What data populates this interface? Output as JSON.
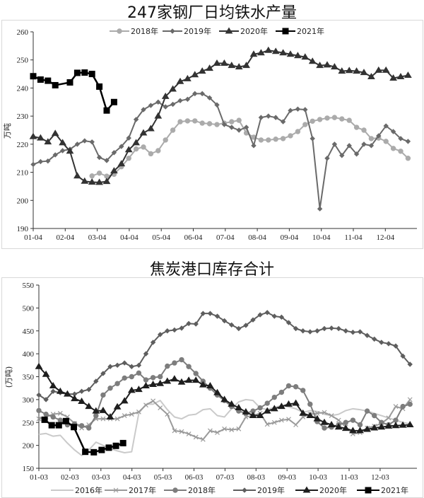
{
  "chart_data": [
    {
      "type": "line",
      "title": "247家钢厂日均铁水产量",
      "ylabel": "万吨",
      "xlabel": "",
      "ylim": [
        190,
        260
      ],
      "yticks": [
        190,
        200,
        210,
        220,
        230,
        240,
        250,
        260
      ],
      "x_unit": "week of year (0 = 01-04)",
      "xtick_labels": [
        "01-04",
        "02-04",
        "03-04",
        "04-04",
        "05-04",
        "06-04",
        "07-04",
        "08-04",
        "09-04",
        "10-04",
        "11-04",
        "12-04"
      ],
      "legend_position": "top",
      "series": [
        {
          "name": "2018年",
          "color": "#ababab",
          "marker": "circle",
          "x": [
            8,
            9,
            10,
            11,
            12,
            13,
            14,
            15,
            16,
            17,
            18,
            19,
            20,
            21,
            22,
            23,
            24,
            25,
            26,
            27,
            28,
            29,
            30,
            31,
            32,
            33,
            34,
            35,
            36,
            37,
            38,
            39,
            40,
            41,
            42,
            43,
            44,
            45,
            46,
            47,
            48,
            49,
            50,
            51
          ],
          "values": [
            208.7,
            209.7,
            208.6,
            209.3,
            212,
            215,
            218.3,
            219,
            216.6,
            217.7,
            221.5,
            225,
            228,
            228.3,
            228.3,
            227.5,
            227.3,
            227,
            227.5,
            228,
            228.5,
            224,
            222.5,
            221.5,
            221.5,
            221.8,
            222,
            223,
            224.5,
            227,
            228.2,
            228.8,
            229.3,
            229.5,
            229,
            228.5,
            226,
            225,
            222,
            222.2,
            221,
            218.5,
            217.5,
            215
          ]
        },
        {
          "name": "2019年",
          "color": "#6a6a6a",
          "marker": "diamond",
          "x": [
            0,
            1,
            2,
            3,
            4,
            5,
            6,
            7,
            8,
            9,
            10,
            11,
            12,
            13,
            14,
            15,
            16,
            17,
            18,
            19,
            20,
            21,
            22,
            23,
            24,
            25,
            26,
            27,
            28,
            29,
            30,
            31,
            32,
            33,
            34,
            35,
            36,
            37,
            38,
            39,
            40,
            41,
            42,
            43,
            44,
            45,
            46,
            47,
            48,
            49,
            50,
            51
          ],
          "values": [
            212.8,
            213.8,
            214,
            216.2,
            217.7,
            218.2,
            220,
            221.2,
            220.8,
            215.3,
            214.2,
            217,
            219.2,
            222.2,
            228.8,
            232.3,
            233.8,
            235,
            233.3,
            234.2,
            235.5,
            236,
            238,
            238,
            236.5,
            234,
            227,
            226,
            225,
            226,
            219.5,
            229.5,
            230,
            229.5,
            228,
            232,
            232.5,
            232.3,
            222,
            197,
            215,
            220,
            216,
            219.5,
            216.5,
            220,
            219.5,
            223,
            226.5,
            224.5,
            222,
            221
          ]
        },
        {
          "name": "2020年",
          "color": "#333333",
          "marker": "triangle",
          "x": [
            0,
            1,
            2,
            3,
            4,
            5,
            6,
            7,
            8,
            9,
            10,
            11,
            12,
            13,
            14,
            15,
            16,
            17,
            18,
            19,
            20,
            21,
            22,
            23,
            24,
            25,
            26,
            27,
            28,
            29,
            30,
            31,
            32,
            33,
            34,
            35,
            36,
            37,
            38,
            39,
            40,
            41,
            42,
            43,
            44,
            45,
            46,
            47,
            48,
            49,
            50,
            51
          ],
          "values": [
            222.7,
            222.2,
            220.8,
            223.8,
            220.5,
            217.5,
            208.7,
            206.8,
            206.5,
            206.4,
            206.7,
            210.5,
            213,
            218,
            220.5,
            224,
            225.5,
            230,
            237,
            239.6,
            242.3,
            243.3,
            244.7,
            246,
            247,
            248.8,
            248.8,
            248,
            247.5,
            248,
            252,
            252.5,
            253.4,
            253,
            252.5,
            252,
            251.5,
            251,
            249.5,
            248,
            248.2,
            247.5,
            246,
            246.2,
            246,
            245.5,
            244,
            246.3,
            246.3,
            243.5,
            244,
            244.5
          ]
        },
        {
          "name": "2021年",
          "color": "#000000",
          "marker": "square",
          "x": [
            0,
            1,
            2,
            3,
            5,
            6,
            7,
            8,
            9,
            10,
            11
          ],
          "values": [
            244.2,
            243,
            242.6,
            241,
            242,
            245.4,
            245.5,
            245,
            240.5,
            232,
            235
          ]
        }
      ]
    },
    {
      "type": "line",
      "title": "焦炭港口库存合计",
      "ylabel": "(万吨)",
      "xlabel": "",
      "ylim": [
        150,
        550
      ],
      "yticks": [
        150,
        200,
        250,
        300,
        350,
        400,
        450,
        500,
        550
      ],
      "x_unit": "week of year (0 = 01-03)",
      "xtick_labels": [
        "01-03",
        "02-03",
        "03-03",
        "04-03",
        "05-03",
        "06-03",
        "07-03",
        "08-03",
        "09-03",
        "10-03",
        "11-03",
        "12-03"
      ],
      "legend_position": "bottom",
      "series": [
        {
          "name": "2016年",
          "color": "#cacaca",
          "marker": "none",
          "x": [
            0,
            1,
            2,
            3,
            4,
            5,
            6,
            7,
            8,
            9,
            10,
            11,
            12,
            13,
            14,
            15,
            16,
            17,
            18,
            19,
            20,
            21,
            22,
            23,
            24,
            25,
            26,
            27,
            28,
            29,
            30,
            31,
            32,
            33,
            34,
            35,
            36,
            37,
            38,
            39,
            40,
            41,
            42,
            43,
            44,
            45,
            46,
            47,
            48,
            49,
            50,
            51,
            52
          ],
          "values": [
            224,
            226,
            220,
            222,
            205,
            190,
            178,
            190,
            207,
            200,
            193,
            188,
            184,
            186,
            270,
            290,
            290,
            298,
            278,
            262,
            258,
            266,
            268,
            278,
            280,
            265,
            262,
            280,
            295,
            300,
            298,
            282,
            278,
            283,
            287,
            284,
            280,
            272,
            276,
            274,
            268,
            265,
            268,
            276,
            280,
            278,
            275,
            270,
            265,
            260,
            255,
            250,
            247
          ]
        },
        {
          "name": "2017年",
          "color": "#9a9a9a",
          "marker": "x",
          "x": [
            0,
            1,
            2,
            3,
            4,
            5,
            6,
            7,
            8,
            9,
            10,
            11,
            12,
            13,
            14,
            15,
            16,
            17,
            18,
            19,
            20,
            21,
            22,
            23,
            24,
            25,
            26,
            27,
            28,
            29,
            30,
            31,
            32,
            33,
            34,
            35,
            36,
            37,
            38,
            39,
            40,
            41,
            42,
            43,
            44,
            45,
            46,
            47,
            48,
            49,
            50,
            51,
            52
          ],
          "values": [
            258,
            262,
            268,
            270,
            262,
            248,
            238,
            245,
            258,
            258,
            258,
            258,
            265,
            268,
            273,
            288,
            297,
            282,
            268,
            232,
            230,
            225,
            218,
            213,
            232,
            228,
            236,
            234,
            236,
            262,
            265,
            270,
            246,
            250,
            255,
            257,
            245,
            262,
            268,
            270,
            272,
            265,
            255,
            240,
            225,
            228,
            238,
            242,
            248,
            260,
            285,
            280,
            300
          ]
        },
        {
          "name": "2018年",
          "color": "#7d7d7d",
          "marker": "circle",
          "x": [
            0,
            1,
            2,
            3,
            4,
            5,
            6,
            7,
            8,
            9,
            10,
            11,
            12,
            13,
            14,
            15,
            16,
            17,
            18,
            19,
            20,
            21,
            22,
            23,
            24,
            25,
            26,
            27,
            28,
            29,
            30,
            31,
            32,
            33,
            34,
            35,
            36,
            37,
            38,
            39,
            40,
            41,
            42,
            43,
            44,
            45,
            46,
            47,
            48,
            49,
            50,
            51,
            52
          ],
          "values": [
            276,
            268,
            262,
            255,
            245,
            247,
            243,
            238,
            265,
            310,
            325,
            335,
            347,
            350,
            358,
            343,
            348,
            350,
            373,
            380,
            387,
            372,
            357,
            340,
            325,
            310,
            298,
            285,
            275,
            270,
            275,
            282,
            292,
            305,
            316,
            330,
            328,
            320,
            290,
            252,
            238,
            240,
            245,
            250,
            255,
            245,
            275,
            265,
            250,
            245,
            255,
            285,
            290
          ]
        },
        {
          "name": "2019年",
          "color": "#5e5e5e",
          "marker": "diamond",
          "x": [
            0,
            1,
            2,
            3,
            4,
            5,
            6,
            7,
            8,
            9,
            10,
            11,
            12,
            13,
            14,
            15,
            16,
            17,
            18,
            19,
            20,
            21,
            22,
            23,
            24,
            25,
            26,
            27,
            28,
            29,
            30,
            31,
            32,
            33,
            34,
            35,
            36,
            37,
            38,
            39,
            40,
            41,
            42,
            43,
            44,
            45,
            46,
            47,
            48,
            49,
            50,
            51,
            52
          ],
          "values": [
            310,
            300,
            318,
            315,
            312,
            312,
            318,
            322,
            340,
            357,
            372,
            375,
            380,
            372,
            375,
            400,
            425,
            442,
            450,
            452,
            456,
            466,
            465,
            488,
            488,
            482,
            472,
            463,
            455,
            462,
            474,
            485,
            490,
            482,
            480,
            468,
            455,
            450,
            448,
            450,
            455,
            456,
            455,
            450,
            447,
            448,
            440,
            432,
            425,
            422,
            417,
            395,
            377
          ]
        },
        {
          "name": "2020年",
          "color": "#1e1e1e",
          "marker": "triangle",
          "x": [
            0,
            1,
            2,
            3,
            4,
            5,
            6,
            7,
            8,
            9,
            10,
            11,
            12,
            13,
            14,
            15,
            16,
            17,
            18,
            19,
            20,
            21,
            22,
            23,
            24,
            25,
            26,
            27,
            28,
            29,
            30,
            31,
            32,
            33,
            34,
            35,
            36,
            37,
            38,
            39,
            40,
            41,
            42,
            43,
            44,
            45,
            46,
            47,
            48,
            49,
            50,
            51,
            52
          ],
          "values": [
            372,
            355,
            330,
            318,
            312,
            302,
            296,
            285,
            275,
            276,
            262,
            284,
            297,
            320,
            322,
            330,
            333,
            335,
            340,
            345,
            338,
            342,
            342,
            332,
            330,
            315,
            300,
            290,
            282,
            273,
            265,
            265,
            275,
            280,
            285,
            290,
            292,
            270,
            265,
            258,
            250,
            245,
            240,
            237,
            232,
            232,
            235,
            238,
            240,
            242,
            243,
            244,
            245
          ]
        },
        {
          "name": "2021年",
          "color": "#000000",
          "marker": "square",
          "x": [
            0.8,
            1.8,
            2.8,
            3.8,
            4.9,
            6.5,
            7.7,
            8.8,
            9.8,
            10.8,
            11.8
          ],
          "values": [
            256,
            244,
            244,
            253,
            240,
            186,
            185,
            190,
            195,
            199,
            205
          ]
        }
      ]
    }
  ]
}
